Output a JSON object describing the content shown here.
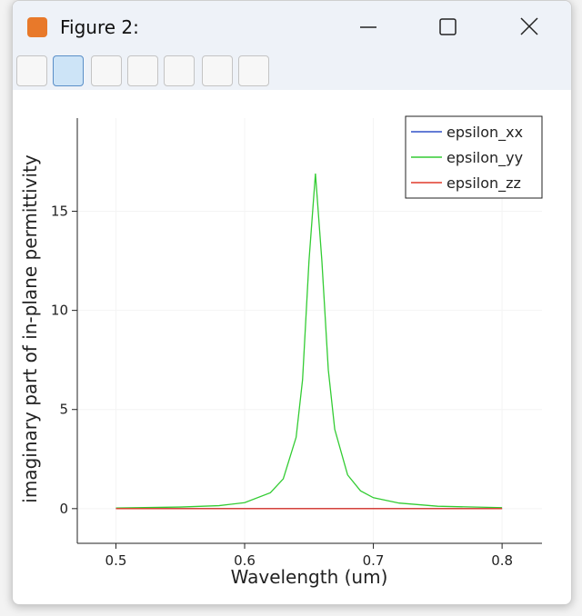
{
  "window": {
    "title": "Figure 2:"
  },
  "chart_data": {
    "type": "line",
    "x": [
      0.5,
      0.55,
      0.58,
      0.6,
      0.62,
      0.63,
      0.64,
      0.645,
      0.65,
      0.655,
      0.66,
      0.665,
      0.67,
      0.68,
      0.69,
      0.7,
      0.72,
      0.75,
      0.8
    ],
    "series": [
      {
        "name": "epsilon_xx",
        "color": "#3050c8",
        "values": [
          0,
          0,
          0,
          0,
          0,
          0,
          0,
          0,
          0,
          0,
          0,
          0,
          0,
          0,
          0,
          0,
          0,
          0,
          0
        ]
      },
      {
        "name": "epsilon_yy",
        "color": "#33cc33",
        "values": [
          0.03,
          0.08,
          0.15,
          0.3,
          0.8,
          1.5,
          3.6,
          6.5,
          12.5,
          16.9,
          12.5,
          7.0,
          4.0,
          1.7,
          0.9,
          0.55,
          0.28,
          0.12,
          0.05
        ]
      },
      {
        "name": "epsilon_zz",
        "color": "#e03a2a",
        "values": [
          0,
          0,
          0,
          0,
          0,
          0,
          0,
          0,
          0,
          0,
          0,
          0,
          0,
          0,
          0,
          0,
          0,
          0,
          0
        ]
      }
    ],
    "xlabel": "Wavelength (um)",
    "ylabel": "imaginary part of in-plane permittivity",
    "xlim": [
      0.47,
      0.831
    ],
    "xticks": [
      0.5,
      0.6,
      0.7,
      0.8
    ],
    "ylim": [
      -1.75,
      19.7
    ],
    "yticks": [
      0,
      5,
      10,
      15
    ],
    "grid": true,
    "legend": "upper right"
  }
}
